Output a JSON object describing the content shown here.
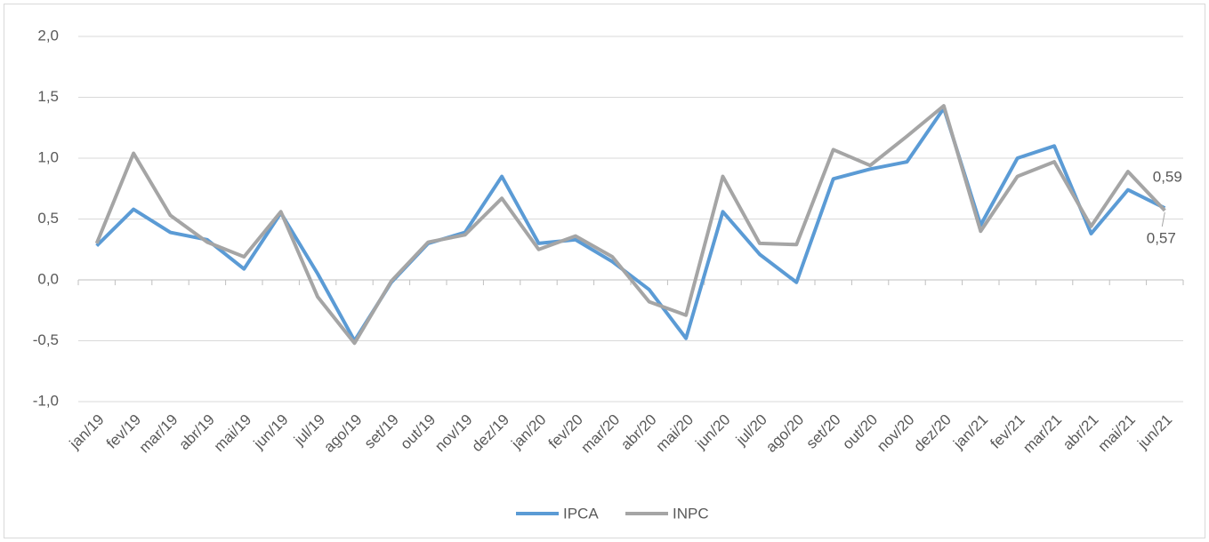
{
  "chart_data": {
    "type": "line",
    "categories": [
      "jan/19",
      "fev/19",
      "mar/19",
      "abr/19",
      "mai/19",
      "jun/19",
      "jul/19",
      "ago/19",
      "set/19",
      "out/19",
      "nov/19",
      "dez/19",
      "jan/20",
      "fev/20",
      "mar/20",
      "abr/20",
      "mai/20",
      "jun/20",
      "jul/20",
      "ago/20",
      "set/20",
      "out/20",
      "nov/20",
      "dez/20",
      "jan/21",
      "fev/21",
      "mar/21",
      "abr/21",
      "mai/21",
      "jun/21"
    ],
    "series": [
      {
        "name": "IPCA",
        "color": "#5b9bd5",
        "values": [
          0.28,
          0.58,
          0.39,
          0.33,
          0.09,
          0.55,
          0.05,
          -0.5,
          -0.02,
          0.3,
          0.39,
          0.85,
          0.3,
          0.33,
          0.15,
          -0.08,
          -0.48,
          0.56,
          0.21,
          -0.02,
          0.83,
          0.91,
          0.97,
          1.41,
          0.45,
          1.0,
          1.1,
          0.38,
          0.74,
          0.59
        ],
        "value_labels": [
          null,
          null,
          null,
          null,
          null,
          null,
          null,
          null,
          null,
          null,
          null,
          null,
          null,
          null,
          null,
          null,
          null,
          null,
          null,
          null,
          null,
          null,
          null,
          null,
          null,
          null,
          null,
          null,
          null,
          "0,59"
        ]
      },
      {
        "name": "INPC",
        "color": "#a5a5a5",
        "values": [
          0.3,
          1.04,
          0.53,
          0.31,
          0.19,
          0.56,
          -0.14,
          -0.52,
          -0.01,
          0.31,
          0.37,
          0.67,
          0.25,
          0.36,
          0.19,
          -0.18,
          -0.29,
          0.85,
          0.3,
          0.29,
          1.07,
          0.94,
          1.18,
          1.43,
          0.4,
          0.85,
          0.97,
          0.44,
          0.89,
          0.57
        ],
        "value_labels": [
          null,
          null,
          null,
          null,
          null,
          null,
          null,
          null,
          null,
          null,
          null,
          null,
          null,
          null,
          null,
          null,
          null,
          null,
          null,
          null,
          null,
          null,
          null,
          null,
          null,
          null,
          null,
          null,
          null,
          "0,57"
        ]
      }
    ],
    "ylim": [
      -1.0,
      2.0
    ],
    "yticks": [
      {
        "value": -1.0,
        "label": "-1,0"
      },
      {
        "value": -0.5,
        "label": "-0,5"
      },
      {
        "value": 0,
        "label": "0,0"
      },
      {
        "value": 0.5,
        "label": "0,5"
      },
      {
        "value": 1.0,
        "label": "1,0"
      },
      {
        "value": 1.5,
        "label": "1,5"
      },
      {
        "value": 2.0,
        "label": "2,0"
      }
    ],
    "grid": true,
    "legend": "bottom"
  }
}
